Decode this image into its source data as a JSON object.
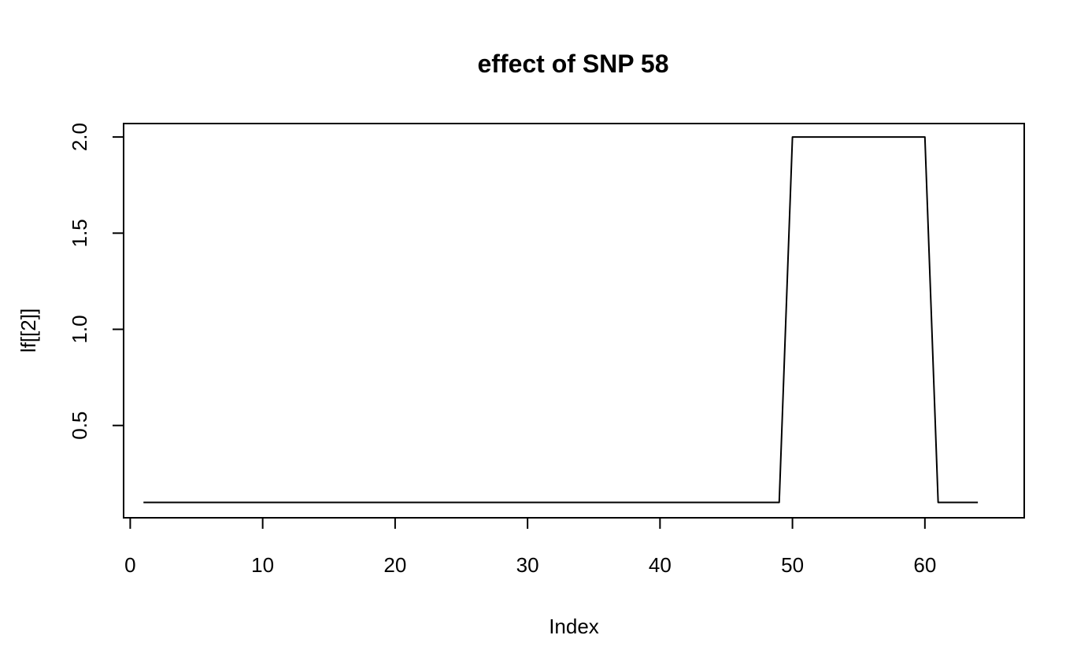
{
  "chart_data": {
    "type": "line",
    "title": "effect of SNP 58",
    "xlabel": "Index",
    "ylabel": "lf[[2]]",
    "xlim": [
      -0.5,
      67.5
    ],
    "ylim": [
      0.02,
      2.07
    ],
    "x_ticks": [
      0,
      10,
      20,
      30,
      40,
      50,
      60
    ],
    "y_ticks": [
      0.5,
      1.0,
      1.5,
      2.0
    ],
    "x_tick_labels": [
      "0",
      "10",
      "20",
      "30",
      "40",
      "50",
      "60"
    ],
    "y_tick_labels": [
      "0.5",
      "1.0",
      "1.5",
      "2.0"
    ],
    "grid": false,
    "line_color": "#000000",
    "series": [
      {
        "x": [
          1,
          2,
          3,
          4,
          5,
          6,
          7,
          8,
          9,
          10,
          11,
          12,
          13,
          14,
          15,
          16,
          17,
          18,
          19,
          20,
          21,
          22,
          23,
          24,
          25,
          26,
          27,
          28,
          29,
          30,
          31,
          32,
          33,
          34,
          35,
          36,
          37,
          38,
          39,
          40,
          41,
          42,
          43,
          44,
          45,
          46,
          47,
          48,
          49,
          50,
          51,
          52,
          53,
          54,
          55,
          56,
          57,
          58,
          59,
          60,
          61,
          62,
          63,
          64
        ],
        "y": [
          0.1,
          0.1,
          0.1,
          0.1,
          0.1,
          0.1,
          0.1,
          0.1,
          0.1,
          0.1,
          0.1,
          0.1,
          0.1,
          0.1,
          0.1,
          0.1,
          0.1,
          0.1,
          0.1,
          0.1,
          0.1,
          0.1,
          0.1,
          0.1,
          0.1,
          0.1,
          0.1,
          0.1,
          0.1,
          0.1,
          0.1,
          0.1,
          0.1,
          0.1,
          0.1,
          0.1,
          0.1,
          0.1,
          0.1,
          0.1,
          0.1,
          0.1,
          0.1,
          0.1,
          0.1,
          0.1,
          0.1,
          0.1,
          0.1,
          2.0,
          2.0,
          2.0,
          2.0,
          2.0,
          2.0,
          2.0,
          2.0,
          2.0,
          2.0,
          2.0,
          0.1,
          0.1,
          0.1,
          0.1
        ]
      }
    ]
  }
}
